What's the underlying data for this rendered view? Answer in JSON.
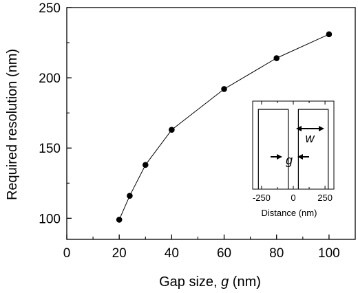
{
  "chart_data": [
    {
      "type": "line",
      "title": "",
      "xlabel_prefix": "Gap size, ",
      "xlabel_symbol": "g",
      "xlabel_suffix": " (nm)",
      "ylabel": "Required resolution (nm)",
      "xlim": [
        0,
        110
      ],
      "ylim": [
        85,
        250
      ],
      "xticks": [
        0,
        20,
        40,
        60,
        80,
        100
      ],
      "yticks": [
        100,
        150,
        200,
        250
      ],
      "grid": false,
      "markers": true,
      "series": [
        {
          "x": [
            20,
            24,
            30,
            40,
            60,
            80,
            100
          ],
          "y": [
            99,
            116,
            138,
            163,
            192,
            214,
            231
          ]
        }
      ]
    },
    {
      "type": "diagram",
      "xlabel": "Distance (nm)",
      "xlim": [
        -320,
        320
      ],
      "xticks": [
        -250,
        0,
        250
      ],
      "xtick_labels": [
        "-250",
        "0",
        "250"
      ],
      "gap_label": "g",
      "width_label": "w",
      "bars": [
        [
          -275,
          -40
        ],
        [
          40,
          275
        ]
      ]
    }
  ]
}
